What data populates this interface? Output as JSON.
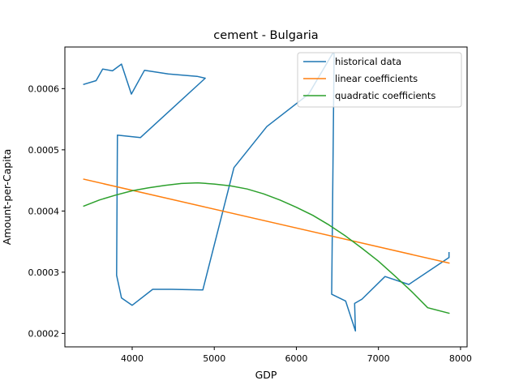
{
  "chart_data": {
    "type": "line",
    "title": "cement - Bulgaria",
    "xlabel": "GDP",
    "ylabel": "Amount-per-Capita",
    "xlim": [
      3180,
      8080
    ],
    "ylim": [
      0.000178,
      0.000668
    ],
    "xticks": [
      {
        "value": 4000,
        "label": "4000"
      },
      {
        "value": 5000,
        "label": "5000"
      },
      {
        "value": 6000,
        "label": "6000"
      },
      {
        "value": 7000,
        "label": "7000"
      },
      {
        "value": 8000,
        "label": "8000"
      }
    ],
    "yticks": [
      {
        "value": 0.0002,
        "label": "0.0002"
      },
      {
        "value": 0.0003,
        "label": "0.0003"
      },
      {
        "value": 0.0004,
        "label": "0.0004"
      },
      {
        "value": 0.0005,
        "label": "0.0005"
      },
      {
        "value": 0.0006,
        "label": "0.0006"
      }
    ],
    "grid": false,
    "legend_position": "top-right",
    "series": [
      {
        "name": "historical data",
        "color": "#1f77b4",
        "x": [
          3410,
          3560,
          3640,
          3760,
          3870,
          3990,
          4150,
          4440,
          4790,
          4890,
          4890,
          4100,
          3820,
          3810,
          3870,
          4000,
          4250,
          4480,
          4860,
          5240,
          5640,
          6150,
          6440,
          6460,
          6430,
          6600,
          6720,
          6710,
          6800,
          7080,
          7370,
          7860,
          7860
        ],
        "y": [
          0.000607,
          0.000613,
          0.000632,
          0.000629,
          0.00064,
          0.000591,
          0.00063,
          0.000624,
          0.00062,
          0.000617,
          0.000617,
          0.00052,
          0.000524,
          0.000295,
          0.000258,
          0.000246,
          0.000272,
          0.000272,
          0.000271,
          0.000471,
          0.000538,
          0.000591,
          0.000657,
          0.000657,
          0.000264,
          0.000253,
          0.000204,
          0.000249,
          0.000256,
          0.000293,
          0.00028,
          0.000324,
          0.000332
        ]
      },
      {
        "name": "linear coefficients",
        "color": "#ff7f0e",
        "x": [
          3410,
          7860
        ],
        "y": [
          0.000452,
          0.000315
        ]
      },
      {
        "name": "quadratic coefficients",
        "color": "#2ca02c",
        "x": [
          3410,
          3600,
          3800,
          4000,
          4200,
          4400,
          4600,
          4800,
          5000,
          5200,
          5400,
          5600,
          5800,
          6000,
          6200,
          6400,
          6600,
          6800,
          7000,
          7200,
          7400,
          7600,
          7860
        ],
        "y": [
          0.000408,
          0.000418,
          0.000426,
          0.000433,
          0.000438,
          0.000442,
          0.000445,
          0.000446,
          0.000444,
          0.000441,
          0.000436,
          0.000428,
          0.000418,
          0.000406,
          0.000393,
          0.000377,
          0.000359,
          0.000339,
          0.000318,
          0.000294,
          0.000269,
          0.000242,
          0.000233
        ]
      }
    ]
  }
}
